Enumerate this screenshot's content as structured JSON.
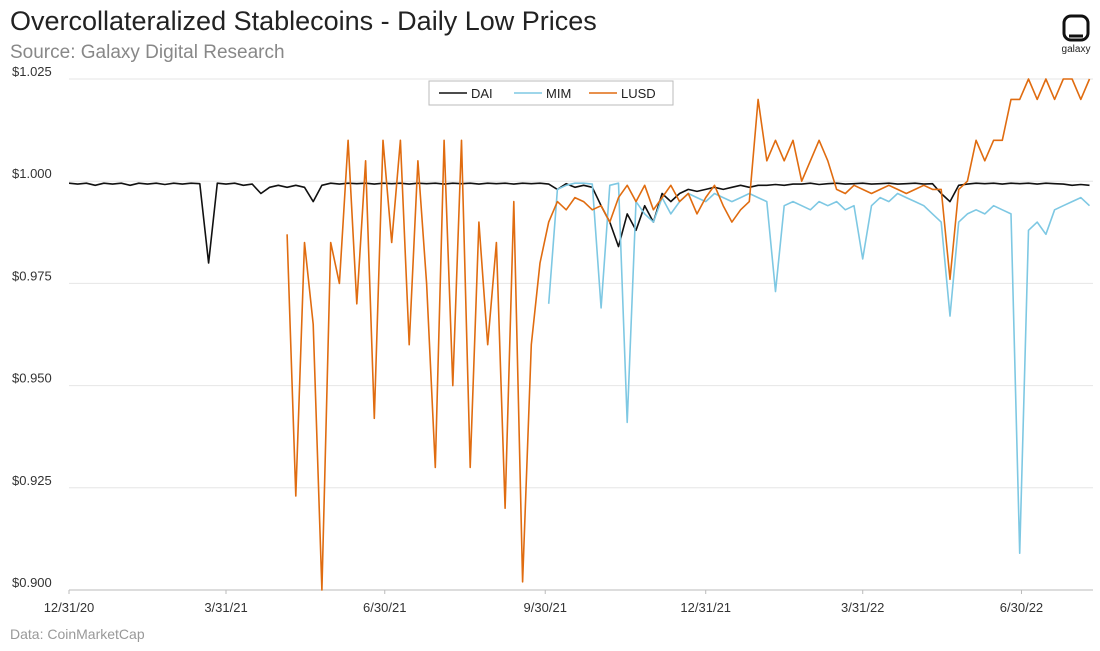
{
  "chart_data": {
    "type": "line",
    "title": "Overcollateralized Stablecoins - Daily Low Prices",
    "subtitle": "Source: Galaxy Digital Research",
    "source": "Data: CoinMarketCap",
    "logo": "galaxy",
    "legend": "top-center",
    "grid": true,
    "x": [
      0,
      5,
      10,
      15,
      20,
      25,
      30,
      35,
      40,
      45,
      50,
      55,
      60,
      65,
      70,
      75,
      80,
      85,
      90,
      95,
      100,
      105,
      110,
      115,
      120,
      125,
      130,
      135,
      140,
      145,
      150,
      155,
      160,
      165,
      170,
      175,
      180,
      185,
      190,
      195,
      200,
      205,
      210,
      215,
      220,
      225,
      230,
      235,
      240,
      245,
      250,
      255,
      260,
      265,
      270,
      275,
      280,
      285,
      290,
      295,
      300,
      305,
      310,
      315,
      320,
      325,
      330,
      335,
      340,
      345,
      350,
      355,
      360,
      365,
      370,
      375,
      380,
      385,
      390,
      395,
      400,
      405,
      410,
      415,
      420,
      425,
      430,
      435,
      440,
      445,
      450,
      455,
      460,
      465,
      470,
      475,
      480,
      485,
      490,
      495,
      500,
      505,
      510,
      515,
      520,
      525,
      530,
      535,
      540,
      545,
      550,
      555,
      560,
      565,
      570,
      575,
      580,
      585
    ],
    "xlim": [
      0,
      587
    ],
    "xticks": [
      {
        "value": 0,
        "label": "12/31/20"
      },
      {
        "value": 90,
        "label": "3/31/21"
      },
      {
        "value": 181,
        "label": "6/30/21"
      },
      {
        "value": 273,
        "label": "9/30/21"
      },
      {
        "value": 365,
        "label": "12/31/21"
      },
      {
        "value": 455,
        "label": "3/31/22"
      },
      {
        "value": 546,
        "label": "6/30/22"
      }
    ],
    "ylim": [
      0.9,
      1.025
    ],
    "yticks": [
      {
        "value": 0.9,
        "label": "$0.900"
      },
      {
        "value": 0.925,
        "label": "$0.925"
      },
      {
        "value": 0.95,
        "label": "$0.950"
      },
      {
        "value": 0.975,
        "label": "$0.975"
      },
      {
        "value": 1.0,
        "label": "$1.000"
      },
      {
        "value": 1.025,
        "label": "$1.025"
      }
    ],
    "series": [
      {
        "name": "DAI",
        "color": "#111111",
        "values": [
          0.9995,
          0.9993,
          0.9995,
          0.999,
          0.9995,
          0.9993,
          0.9995,
          0.999,
          0.9995,
          0.9993,
          0.9995,
          0.9992,
          0.9995,
          0.9993,
          0.9995,
          0.9994,
          0.98,
          0.9995,
          0.9993,
          0.9995,
          0.999,
          0.9993,
          0.997,
          0.9985,
          0.999,
          0.9985,
          0.999,
          0.9985,
          0.995,
          0.999,
          0.9995,
          0.9993,
          0.9995,
          0.9994,
          0.9995,
          0.9993,
          0.9995,
          0.9994,
          0.9995,
          0.9993,
          0.9995,
          0.9994,
          0.9995,
          0.9993,
          0.9995,
          0.9994,
          0.9995,
          0.9993,
          0.9995,
          0.9994,
          0.9995,
          0.9993,
          0.9995,
          0.9994,
          0.9995,
          0.9993,
          0.998,
          0.9994,
          0.9985,
          0.999,
          0.9985,
          0.994,
          0.99,
          0.984,
          0.992,
          0.988,
          0.994,
          0.99,
          0.997,
          0.995,
          0.997,
          0.998,
          0.9975,
          0.998,
          0.9985,
          0.998,
          0.9985,
          0.999,
          0.9985,
          0.999,
          0.999,
          0.9992,
          0.999,
          0.9993,
          0.9993,
          0.9995,
          0.9992,
          0.9994,
          0.9995,
          0.9993,
          0.9994,
          0.9995,
          0.9993,
          0.9994,
          0.9995,
          0.9993,
          0.9994,
          0.9995,
          0.9993,
          0.9994,
          0.997,
          0.995,
          0.999,
          0.9993,
          0.9995,
          0.9994,
          0.9995,
          0.9993,
          0.9995,
          0.9994,
          0.9995,
          0.9993,
          0.9995,
          0.9994,
          0.9993,
          0.999,
          0.9992,
          0.999
        ]
      },
      {
        "name": "MIM",
        "color": "#7ec8e3",
        "values": [
          null,
          null,
          null,
          null,
          null,
          null,
          null,
          null,
          null,
          null,
          null,
          null,
          null,
          null,
          null,
          null,
          null,
          null,
          null,
          null,
          null,
          null,
          null,
          null,
          null,
          null,
          null,
          null,
          null,
          null,
          null,
          null,
          null,
          null,
          null,
          null,
          null,
          null,
          null,
          null,
          null,
          null,
          null,
          null,
          null,
          null,
          null,
          null,
          null,
          null,
          null,
          null,
          null,
          null,
          null,
          0.97,
          0.998,
          0.999,
          0.9995,
          0.9995,
          0.9993,
          0.969,
          0.999,
          0.9995,
          0.941,
          0.995,
          0.992,
          0.99,
          0.996,
          0.992,
          0.995,
          0.997,
          0.996,
          0.995,
          0.997,
          0.996,
          0.995,
          0.996,
          0.997,
          0.996,
          0.995,
          0.973,
          0.994,
          0.995,
          0.994,
          0.993,
          0.995,
          0.994,
          0.995,
          0.993,
          0.994,
          0.981,
          0.994,
          0.996,
          0.995,
          0.997,
          0.996,
          0.995,
          0.994,
          0.992,
          0.99,
          0.967,
          0.99,
          0.992,
          0.993,
          0.992,
          0.994,
          0.993,
          0.992,
          0.909,
          0.988,
          0.99,
          0.987,
          0.993,
          0.994,
          0.995,
          0.996,
          0.994
        ]
      },
      {
        "name": "LUSD",
        "color": "#e06c10",
        "values": [
          null,
          null,
          null,
          null,
          null,
          null,
          null,
          null,
          null,
          null,
          null,
          null,
          null,
          null,
          null,
          null,
          null,
          null,
          null,
          null,
          null,
          null,
          null,
          null,
          null,
          0.987,
          0.923,
          0.985,
          0.965,
          0.9,
          0.985,
          0.975,
          1.01,
          0.97,
          1.005,
          0.942,
          1.01,
          0.985,
          1.01,
          0.96,
          1.005,
          0.975,
          0.93,
          1.01,
          0.95,
          1.01,
          0.93,
          0.99,
          0.96,
          0.985,
          0.92,
          0.995,
          0.902,
          0.96,
          0.98,
          0.99,
          0.995,
          0.993,
          0.996,
          0.995,
          0.993,
          0.994,
          0.99,
          0.996,
          0.999,
          0.995,
          0.999,
          0.993,
          0.996,
          0.999,
          0.995,
          0.997,
          0.992,
          0.996,
          0.999,
          0.994,
          0.99,
          0.993,
          0.995,
          1.02,
          1.005,
          1.01,
          1.005,
          1.01,
          1.0,
          1.005,
          1.01,
          1.005,
          0.998,
          0.997,
          0.999,
          0.998,
          0.997,
          0.998,
          0.999,
          0.998,
          0.997,
          0.998,
          0.999,
          0.998,
          0.998,
          0.976,
          0.998,
          1.0,
          1.01,
          1.005,
          1.01,
          1.01,
          1.02,
          1.02,
          1.025,
          1.02,
          1.025,
          1.02,
          1.025,
          1.025,
          1.02,
          1.025
        ]
      }
    ]
  }
}
